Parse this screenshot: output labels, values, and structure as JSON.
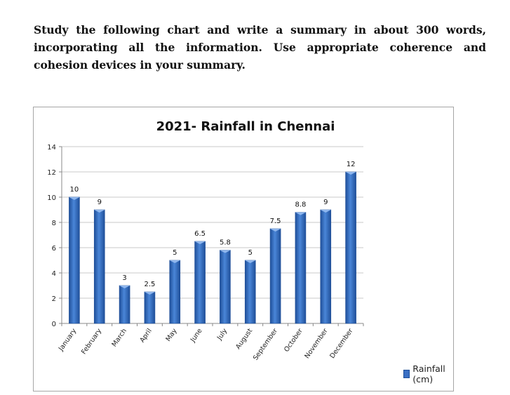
{
  "prompt": {
    "text": "Study the following chart and write a summary in about 300 words, incorporating all the information. Use appropriate coherence and cohesion devices in your summary."
  },
  "chart_data": {
    "type": "bar",
    "title": "2021- Rainfall in Chennai",
    "categories": [
      "January",
      "February",
      "March",
      "April",
      "May",
      "June",
      "July",
      "August",
      "September",
      "October",
      "November",
      "December"
    ],
    "series": [
      {
        "name": "Rainfall (cm)",
        "values": [
          10,
          9,
          3,
          2.5,
          5,
          6.5,
          5.8,
          5,
          7.5,
          8.8,
          9,
          12
        ],
        "data_labels": [
          "10",
          "9",
          "3",
          "2.5",
          "5",
          "6.5",
          "5.8",
          "5",
          "7.5",
          "8.8",
          "9",
          "12"
        ]
      }
    ],
    "ylim": [
      0,
      14
    ],
    "yticks": [
      "0",
      "2",
      "4",
      "6",
      "8",
      "10",
      "12",
      "14"
    ],
    "grid": true,
    "legend": "right",
    "colors": {
      "bar": "#3a6fc4",
      "bar_dark": "#1f4f99",
      "grid": "#c8c8c8"
    }
  }
}
